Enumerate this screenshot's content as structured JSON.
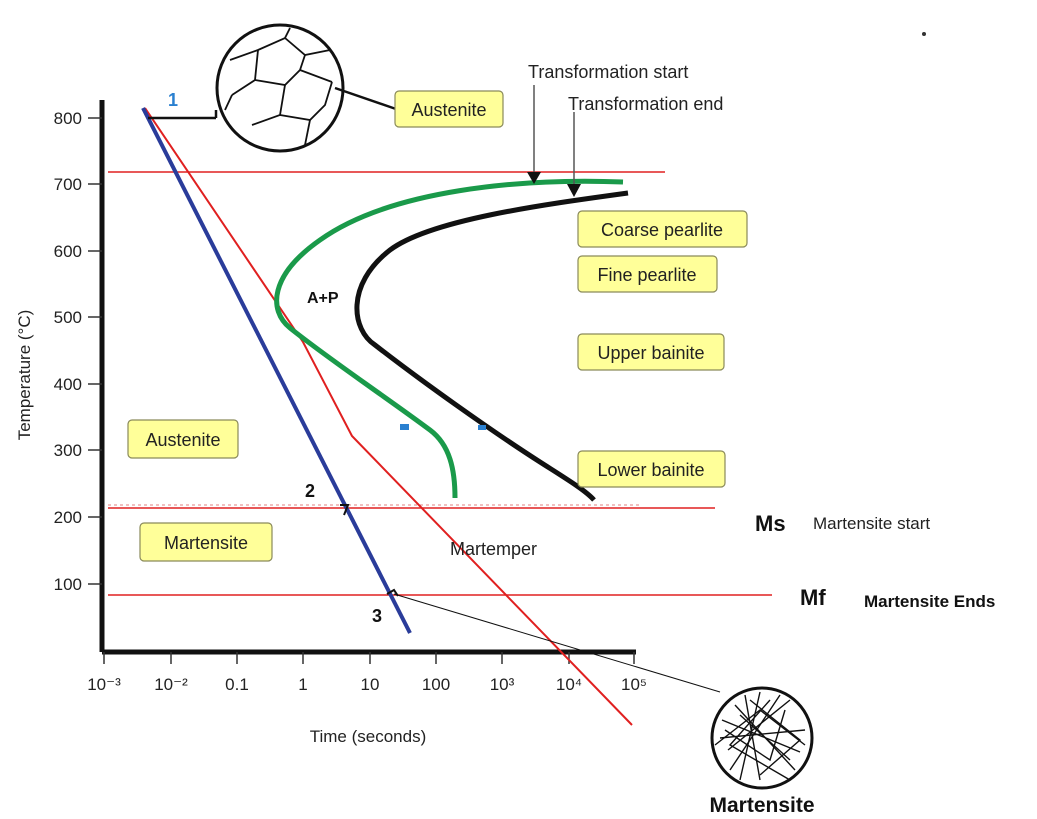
{
  "chart_data": {
    "type": "diagram",
    "ylabel": "Temperature (°C)",
    "xlabel": "Time (seconds)",
    "y_ticks": [
      "800",
      "700",
      "600",
      "500",
      "400",
      "300",
      "200",
      "100"
    ],
    "x_ticks": [
      "10⁻³",
      "10⁻²",
      "0.1",
      "1",
      "10",
      "100",
      "10³",
      "10⁴",
      "10⁵"
    ],
    "regions": [
      "Austenite",
      "Coarse pearlite",
      "Fine pearlite",
      "Upper bainite",
      "Lower bainite",
      "Austenite",
      "Martensite"
    ],
    "annotations": {
      "transformation_start": "Transformation start",
      "transformation_end": "Transformation end",
      "ap": "A+P",
      "martemper": "Martemper",
      "ms": "Ms",
      "ms_desc": "Martensite start",
      "mf": "Mf",
      "mf_desc": "Martensite Ends",
      "martensite_caption": "Martensite",
      "point1": "1",
      "point2": "2",
      "point3": "3"
    },
    "colors": {
      "start_curve": "#1a9a4a",
      "end_curve": "#111111",
      "quench_curve": "#2a3c9a",
      "reference_lines": "#e02020",
      "label_fill": "#ffff99"
    }
  }
}
